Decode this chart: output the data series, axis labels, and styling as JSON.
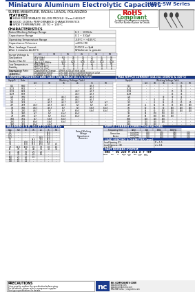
{
  "title": "Miniature Aluminum Electrolytic Capacitors",
  "series": "NRE-SW Series",
  "subtitle": "SUPER-MINIATURE, RADIAL LEADS, POLARIZED",
  "features_title": "FEATURES",
  "features": [
    "HIGH PERFORMANCE IN LOW PROFILE (7mm) HEIGHT",
    "GOOD 100KHz PERFORMANCE CHARACTERISTICS",
    "WIDE TEMPERATURE -55 TO + 105°C"
  ],
  "char_title": "CHARACTERISTICS",
  "std_table_title": "STANDARD PRODUCT AND CASE SIZE TABLE Dx x L (mm)",
  "ripple_title": "MAX RIPPLE CURRENT (mA rms 100KHz & 100°C)",
  "max_esr_title": "MAXIMUM E.S.R. (Ω) AT 20°C/100 KHz",
  "ripple_corr_title": "RIPPLE CURRENT CORRECTION FACTORS",
  "lead_title": "LEAD SPACING & DIAMETER (mm)",
  "part_title": "PART NUMBER SYSTEM",
  "precautions_title": "PRECAUTIONS",
  "bg_color": "#ffffff",
  "header_blue": "#1a3a8c",
  "border_color": "#888888",
  "text_color": "#000000",
  "rohs_green": "#2d7d2d",
  "rohs_red": "#cc0000",
  "watermark_color": "#c0c8e8",
  "footer_bg": "#1a3a8c",
  "footer_text": "#ffffff"
}
